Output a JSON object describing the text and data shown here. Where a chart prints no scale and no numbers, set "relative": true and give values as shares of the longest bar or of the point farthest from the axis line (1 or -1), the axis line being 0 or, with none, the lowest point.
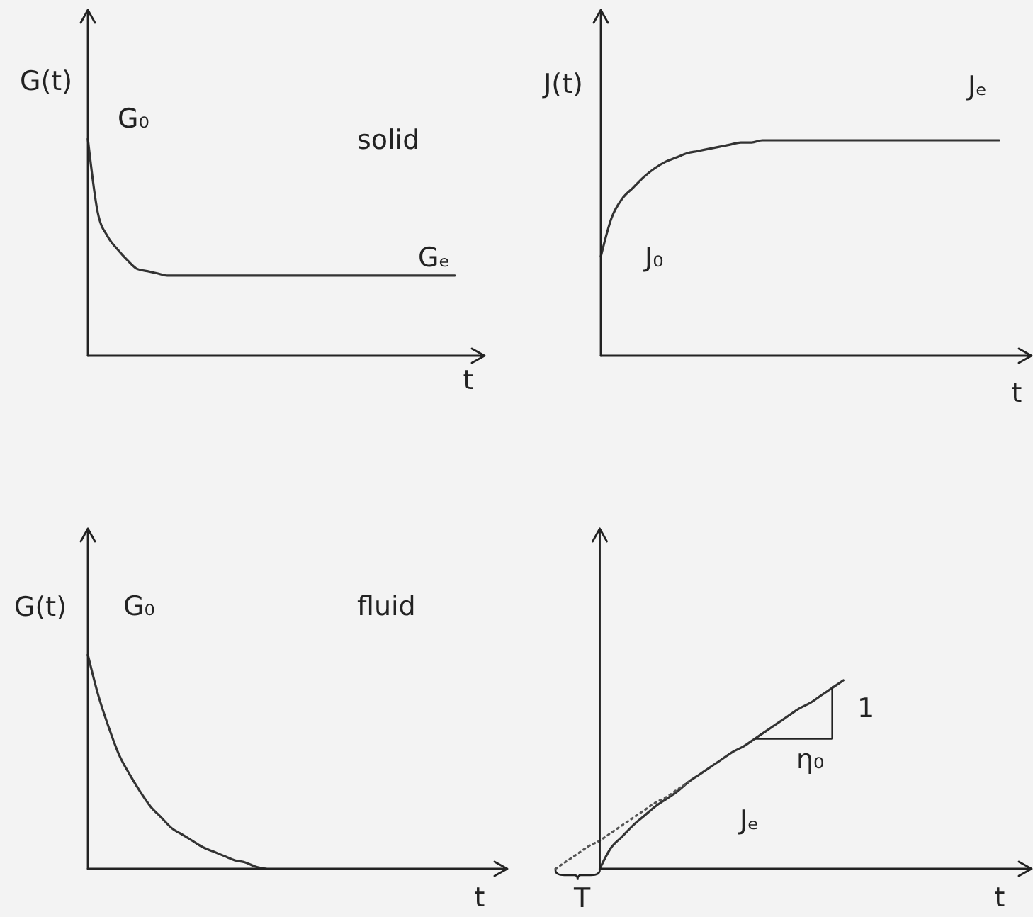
{
  "chart_data": [
    {
      "type": "line",
      "relative": true,
      "xlabel": "t",
      "ylabel": "G(t)",
      "color": "#333333",
      "annotations": [
        "G₀",
        "solid",
        "Gₑ"
      ],
      "categories": [
        null,
        null,
        null,
        null,
        null,
        null,
        null,
        null,
        null,
        null,
        null,
        null,
        null,
        null,
        null,
        null,
        null,
        null,
        null,
        null,
        null,
        null,
        null,
        null,
        null,
        null,
        null,
        null,
        null,
        null,
        null,
        null,
        null,
        null,
        null,
        null,
        null,
        null,
        null,
        null,
        null
      ],
      "values": [
        1,
        0.66,
        0.55,
        0.49,
        0.44,
        0.4,
        0.39,
        0.38,
        0.37,
        0.37,
        0.37,
        0.37,
        0.37,
        0.37,
        0.37,
        0.37,
        0.37,
        0.37,
        0.37,
        0.37,
        0.37,
        0.37,
        0.37,
        0.37,
        0.37,
        0.37,
        0.37,
        0.37,
        0.37,
        0.37,
        0.37,
        0.37,
        0.37,
        0.37,
        0.37,
        0.37,
        0.37,
        0.37,
        null,
        null,
        null
      ]
    },
    {
      "type": "line",
      "relative": true,
      "xlabel": "t",
      "ylabel": "J(t)",
      "color": "#333333",
      "annotations": [
        "Jₑ",
        "J₀"
      ],
      "categories": [
        null,
        null,
        null,
        null,
        null,
        null,
        null,
        null,
        null,
        null,
        null,
        null,
        null,
        null,
        null,
        null,
        null,
        null,
        null,
        null,
        null,
        null,
        null,
        null,
        null,
        null,
        null,
        null,
        null,
        null,
        null,
        null,
        null,
        null,
        null,
        null,
        null,
        null,
        null,
        null,
        null
      ],
      "values": [
        0.46,
        0.64,
        0.73,
        0.78,
        0.83,
        0.87,
        0.9,
        0.92,
        0.94,
        0.95,
        0.96,
        0.97,
        0.98,
        0.99,
        0.99,
        1,
        1,
        1,
        1,
        1,
        1,
        1,
        1,
        1,
        1,
        1,
        1,
        1,
        1,
        1,
        1,
        1,
        1,
        1,
        1,
        1,
        1,
        1,
        null,
        null,
        null
      ]
    },
    {
      "type": "line",
      "relative": true,
      "xlabel": "t",
      "ylabel": "G(t)",
      "color": "#333333",
      "annotations": [
        "G₀",
        "fluid"
      ],
      "categories": [
        null,
        null,
        null,
        null,
        null,
        null,
        null,
        null,
        null,
        null,
        null,
        null,
        null,
        null,
        null,
        null,
        null,
        null,
        null,
        null,
        null,
        null,
        null,
        null,
        null,
        null,
        null,
        null,
        null,
        null,
        null,
        null,
        null,
        null,
        null,
        null,
        null,
        null,
        null,
        null,
        null
      ],
      "values": [
        1,
        0.81,
        0.66,
        0.53,
        0.44,
        0.36,
        0.29,
        0.24,
        0.19,
        0.16,
        0.13,
        0.1,
        0.08,
        0.06,
        0.04,
        0.03,
        0.01,
        0,
        null,
        null,
        null,
        null,
        null,
        null,
        null,
        null,
        null,
        null,
        null,
        null,
        null,
        null,
        null,
        null,
        null,
        null,
        null,
        null,
        null,
        null,
        null
      ]
    },
    {
      "type": "line",
      "relative": true,
      "xlabel": "t",
      "annotations": [
        "1",
        "η₀",
        "Jₑ",
        "T"
      ],
      "categories": [
        null,
        null,
        null,
        null,
        null,
        null,
        null,
        null,
        null,
        null,
        null,
        null,
        null,
        null,
        null,
        null,
        null,
        null,
        null,
        null,
        null,
        null,
        null,
        null,
        null,
        null,
        null,
        null,
        null,
        null,
        null,
        null,
        null,
        null,
        null,
        null,
        null,
        null,
        null,
        null,
        null,
        null,
        null,
        null
      ],
      "series": [
        {
          "color": "#333333",
          "values": [
            null,
            null,
            null,
            null,
            0,
            0.11,
            0.17,
            0.23,
            0.28,
            0.33,
            0.37,
            0.41,
            0.46,
            0.5,
            0.54,
            0.58,
            0.62,
            0.65,
            0.69,
            0.73,
            0.77,
            0.81,
            0.85,
            0.88,
            0.92,
            0.96,
            1,
            null,
            null,
            null,
            null,
            null,
            null,
            null,
            null,
            null,
            null,
            null,
            null,
            null,
            null,
            null,
            null,
            null
          ]
        },
        {
          "type": "line",
          "line_style": "dotted",
          "color": "#555555",
          "values": [
            0,
            0.04,
            0.08,
            0.12,
            0.15,
            0.19,
            0.23,
            0.27,
            0.31,
            0.35,
            0.38,
            0.42,
            0.46,
            null,
            null,
            null,
            null,
            null,
            null,
            null,
            null,
            null,
            null,
            null,
            null,
            null,
            null,
            null,
            null,
            null,
            null,
            null,
            null,
            null,
            null,
            null,
            null,
            null,
            null,
            null,
            null,
            null,
            null,
            null
          ]
        }
      ]
    }
  ]
}
